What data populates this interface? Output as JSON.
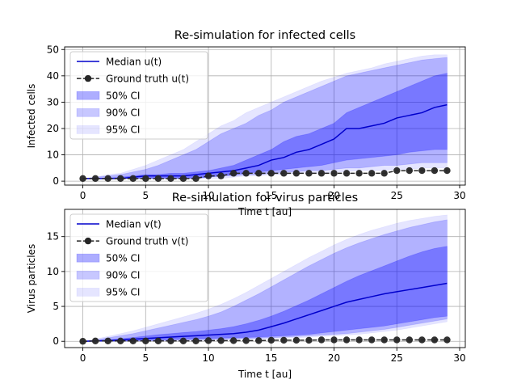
{
  "chart_data": [
    {
      "type": "line",
      "title": "Re-simulation for infected cells",
      "xlabel": "Time t [au]",
      "ylabel": "Infected cells",
      "xlim": [
        -1.45,
        30.45
      ],
      "ylim": [
        -1.5,
        51
      ],
      "xticks": [
        0,
        5,
        10,
        15,
        20,
        25,
        30
      ],
      "yticks": [
        0,
        10,
        20,
        30,
        40,
        50
      ],
      "grid": true,
      "legend_position": "upper-left",
      "legend": [
        "Median u(t)",
        "Ground truth u(t)",
        "50% CI",
        "90% CI",
        "95% CI"
      ],
      "x": [
        0,
        1,
        2,
        3,
        4,
        5,
        6,
        7,
        8,
        9,
        10,
        11,
        12,
        13,
        14,
        15,
        16,
        17,
        18,
        19,
        20,
        21,
        22,
        23,
        24,
        25,
        26,
        27,
        28,
        29
      ],
      "colors": {
        "median": "#0000cc",
        "truth": "#262626",
        "ci": "#0000ff"
      },
      "series": [
        {
          "name": "Median u(t)",
          "style": "line",
          "values": [
            1,
            1,
            1,
            1,
            1.5,
            2,
            2,
            2,
            2,
            2.5,
            3,
            3.5,
            4,
            5,
            6,
            8,
            9,
            11,
            12,
            14,
            16,
            20,
            20,
            21,
            22,
            24,
            25,
            26,
            28,
            29
          ]
        },
        {
          "name": "Ground truth u(t)",
          "style": "dashed-marker",
          "values": [
            1,
            1,
            1,
            1,
            1,
            1,
            1,
            1,
            1,
            1,
            2,
            2,
            3,
            3,
            3,
            3,
            3,
            3,
            3,
            3,
            3,
            3,
            3,
            3,
            3,
            4,
            4,
            4,
            4,
            4
          ]
        },
        {
          "name": "50% CI",
          "style": "band",
          "opacity": 0.32,
          "lower": [
            1,
            1,
            1,
            1,
            1,
            1,
            1,
            1,
            1,
            1.2,
            1.5,
            2,
            2.5,
            3,
            3.5,
            4,
            4.5,
            5,
            5.5,
            6,
            7,
            8,
            8.5,
            9,
            9.5,
            10,
            11,
            11.5,
            12,
            12
          ],
          "upper": [
            1,
            1,
            1.2,
            1.5,
            2,
            2.5,
            2.5,
            3,
            3,
            3.5,
            4,
            5,
            6,
            8,
            10,
            12,
            15,
            17,
            18,
            20,
            22,
            26,
            28,
            30,
            32,
            34,
            36,
            38,
            40,
            41
          ]
        },
        {
          "name": "90% CI",
          "style": "band",
          "opacity": 0.22,
          "lower": [
            1,
            1,
            1,
            1,
            1,
            1,
            1,
            1,
            1,
            1,
            1.5,
            2,
            2,
            2.5,
            2.5,
            3,
            3.5,
            3.5,
            4,
            4,
            4.5,
            5,
            5,
            5.5,
            6,
            6,
            6.5,
            7,
            7,
            7
          ],
          "upper": [
            1,
            1.5,
            2,
            2.5,
            3.5,
            4.5,
            6,
            8,
            10,
            12,
            15,
            18,
            20,
            22,
            25,
            27,
            30,
            32,
            34,
            36,
            38,
            40,
            41,
            42,
            43,
            44,
            45,
            46,
            46.5,
            47
          ]
        },
        {
          "name": "95% CI",
          "style": "band",
          "opacity": 0.1,
          "lower": [
            1,
            1,
            1,
            1,
            1,
            1,
            1,
            1,
            1,
            1,
            1,
            1,
            1.5,
            2,
            2,
            2.5,
            2.5,
            3,
            3,
            3,
            3.5,
            3.5,
            4,
            4,
            4,
            4.5,
            4.5,
            5,
            5,
            5
          ],
          "upper": [
            1,
            1.5,
            2.5,
            3,
            4.5,
            6,
            8,
            10,
            12,
            15,
            18,
            21,
            23,
            26,
            28,
            30,
            32,
            34,
            36,
            38,
            39.5,
            41,
            42,
            43,
            44.5,
            45.5,
            46.5,
            47.5,
            48,
            48
          ]
        }
      ]
    },
    {
      "type": "line",
      "title": "Re-simulation for virus particles",
      "xlabel": "Time t [au]",
      "ylabel": "Virus particles",
      "xlim": [
        -1.45,
        30.45
      ],
      "ylim": [
        -0.9,
        18.9
      ],
      "xticks": [
        0,
        5,
        10,
        15,
        20,
        25,
        30
      ],
      "yticks": [
        0,
        5,
        10,
        15
      ],
      "grid": true,
      "legend_position": "upper-left",
      "legend": [
        "Median v(t)",
        "Ground truth v(t)",
        "50% CI",
        "90% CI",
        "95% CI"
      ],
      "x": [
        0,
        1,
        2,
        3,
        4,
        5,
        6,
        7,
        8,
        9,
        10,
        11,
        12,
        13,
        14,
        15,
        16,
        17,
        18,
        19,
        20,
        21,
        22,
        23,
        24,
        25,
        26,
        27,
        28,
        29
      ],
      "colors": {
        "median": "#0000cc",
        "truth": "#262626",
        "ci": "#0000ff"
      },
      "series": [
        {
          "name": "Median v(t)",
          "style": "line",
          "values": [
            0,
            0.05,
            0.1,
            0.2,
            0.3,
            0.4,
            0.5,
            0.6,
            0.7,
            0.8,
            0.9,
            1.0,
            1.1,
            1.3,
            1.6,
            2.1,
            2.6,
            3.2,
            3.8,
            4.4,
            5.0,
            5.6,
            6.0,
            6.4,
            6.8,
            7.1,
            7.4,
            7.7,
            8.0,
            8.3
          ]
        },
        {
          "name": "Ground truth v(t)",
          "style": "dashed-marker",
          "values": [
            0,
            0.05,
            0.05,
            0.05,
            0.05,
            0.05,
            0.05,
            0.05,
            0.05,
            0.05,
            0.1,
            0.1,
            0.1,
            0.1,
            0.1,
            0.15,
            0.15,
            0.15,
            0.15,
            0.2,
            0.2,
            0.2,
            0.2,
            0.2,
            0.2,
            0.2,
            0.2,
            0.2,
            0.2,
            0.2
          ]
        },
        {
          "name": "50% CI",
          "style": "band",
          "opacity": 0.32,
          "lower": [
            0,
            0,
            0,
            0.05,
            0.1,
            0.15,
            0.2,
            0.25,
            0.3,
            0.35,
            0.4,
            0.45,
            0.5,
            0.55,
            0.6,
            0.7,
            0.8,
            0.9,
            1.0,
            1.2,
            1.4,
            1.6,
            1.8,
            2.0,
            2.2,
            2.5,
            2.8,
            3.1,
            3.4,
            3.6
          ],
          "upper": [
            0,
            0.1,
            0.2,
            0.35,
            0.55,
            0.75,
            0.95,
            1.1,
            1.25,
            1.4,
            1.6,
            1.8,
            2.1,
            2.5,
            3.0,
            3.6,
            4.3,
            5.1,
            5.9,
            6.8,
            7.7,
            8.6,
            9.4,
            10.1,
            10.8,
            11.5,
            12.2,
            12.8,
            13.3,
            13.6
          ]
        },
        {
          "name": "90% CI",
          "style": "band",
          "opacity": 0.22,
          "lower": [
            0,
            0,
            0,
            0,
            0.05,
            0.05,
            0.1,
            0.15,
            0.2,
            0.2,
            0.25,
            0.3,
            0.35,
            0.4,
            0.45,
            0.5,
            0.6,
            0.7,
            0.8,
            0.9,
            1.0,
            1.1,
            1.3,
            1.5,
            1.7,
            2.0,
            2.3,
            2.6,
            2.9,
            3.2
          ],
          "upper": [
            0,
            0.2,
            0.5,
            0.8,
            1.1,
            1.5,
            1.9,
            2.3,
            2.7,
            3.1,
            3.6,
            4.2,
            5.0,
            5.9,
            6.8,
            7.8,
            8.8,
            9.8,
            10.8,
            11.7,
            12.6,
            13.4,
            14.1,
            14.7,
            15.3,
            15.8,
            16.3,
            16.7,
            17.1,
            17.4
          ]
        },
        {
          "name": "95% CI",
          "style": "band",
          "opacity": 0.1,
          "lower": [
            0,
            0,
            0,
            0,
            0,
            0.05,
            0.05,
            0.1,
            0.15,
            0.15,
            0.2,
            0.2,
            0.25,
            0.3,
            0.35,
            0.4,
            0.45,
            0.5,
            0.6,
            0.7,
            0.8,
            0.9,
            1.0,
            1.2,
            1.4,
            1.6,
            1.9,
            2.2,
            2.5,
            2.8
          ],
          "upper": [
            0,
            0.3,
            0.7,
            1.1,
            1.5,
            2.0,
            2.5,
            3.0,
            3.5,
            4.0,
            4.6,
            5.3,
            6.1,
            7.0,
            8.0,
            9.0,
            10.0,
            11.0,
            12.0,
            12.9,
            13.8,
            14.6,
            15.3,
            15.9,
            16.4,
            16.9,
            17.3,
            17.6,
            17.9,
            18.1
          ]
        }
      ]
    }
  ]
}
